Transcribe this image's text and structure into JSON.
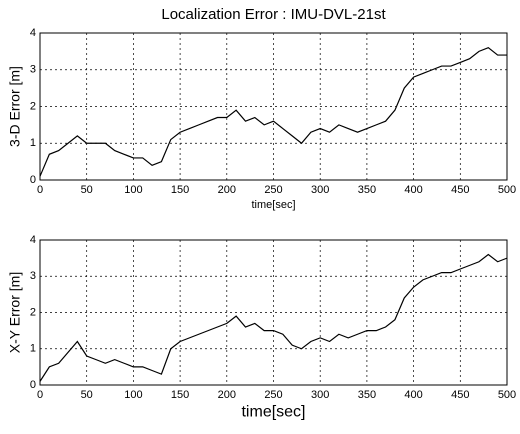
{
  "chart_data": [
    {
      "type": "line",
      "title": "Localization Error : IMU-DVL-21st",
      "ylabel": "3-D Error [m]",
      "xlabel": "time[sec]",
      "x": [
        0,
        10,
        20,
        30,
        40,
        50,
        60,
        70,
        80,
        90,
        100,
        110,
        120,
        130,
        140,
        150,
        160,
        170,
        180,
        190,
        200,
        210,
        220,
        230,
        240,
        250,
        260,
        270,
        280,
        290,
        300,
        310,
        320,
        330,
        340,
        350,
        360,
        370,
        380,
        390,
        400,
        410,
        420,
        430,
        440,
        450,
        460,
        470,
        480,
        490,
        500
      ],
      "series": [
        {
          "color": "#000000",
          "values": [
            0.1,
            0.7,
            0.8,
            1.0,
            1.2,
            1.0,
            1.0,
            1.0,
            0.8,
            0.7,
            0.6,
            0.6,
            0.4,
            0.5,
            1.1,
            1.3,
            1.4,
            1.5,
            1.6,
            1.7,
            1.7,
            1.9,
            1.6,
            1.7,
            1.5,
            1.6,
            1.4,
            1.2,
            1.0,
            1.3,
            1.4,
            1.3,
            1.5,
            1.4,
            1.3,
            1.4,
            1.5,
            1.6,
            1.9,
            2.5,
            2.8,
            2.9,
            3.0,
            3.1,
            3.1,
            3.2,
            3.3,
            3.5,
            3.6,
            3.4,
            3.4
          ]
        }
      ],
      "xlim": [
        0,
        500
      ],
      "xticks": [
        0,
        50,
        100,
        150,
        200,
        250,
        300,
        350,
        400,
        450,
        500
      ],
      "ylim": [
        0,
        4
      ],
      "yticks": [
        0,
        1,
        2,
        3,
        4
      ],
      "grid": true
    },
    {
      "type": "line",
      "ylabel": "X-Y Error [m]",
      "xlabel": "time[sec]",
      "x": [
        0,
        10,
        20,
        30,
        40,
        50,
        60,
        70,
        80,
        90,
        100,
        110,
        120,
        130,
        140,
        150,
        160,
        170,
        180,
        190,
        200,
        210,
        220,
        230,
        240,
        250,
        260,
        270,
        280,
        290,
        300,
        310,
        320,
        330,
        340,
        350,
        360,
        370,
        380,
        390,
        400,
        410,
        420,
        430,
        440,
        450,
        460,
        470,
        480,
        490,
        500
      ],
      "series": [
        {
          "color": "#000000",
          "values": [
            0.1,
            0.5,
            0.6,
            0.9,
            1.2,
            0.8,
            0.7,
            0.6,
            0.7,
            0.6,
            0.5,
            0.5,
            0.4,
            0.3,
            1.0,
            1.2,
            1.3,
            1.4,
            1.5,
            1.6,
            1.7,
            1.9,
            1.6,
            1.7,
            1.5,
            1.5,
            1.4,
            1.1,
            1.0,
            1.2,
            1.3,
            1.2,
            1.4,
            1.3,
            1.4,
            1.5,
            1.5,
            1.6,
            1.8,
            2.4,
            2.7,
            2.9,
            3.0,
            3.1,
            3.1,
            3.2,
            3.3,
            3.4,
            3.6,
            3.4,
            3.5
          ]
        }
      ],
      "xlim": [
        0,
        500
      ],
      "xticks": [
        0,
        50,
        100,
        150,
        200,
        250,
        300,
        350,
        400,
        450,
        500
      ],
      "ylim": [
        0,
        4
      ],
      "yticks": [
        0,
        1,
        2,
        3,
        4
      ],
      "grid": true
    }
  ]
}
